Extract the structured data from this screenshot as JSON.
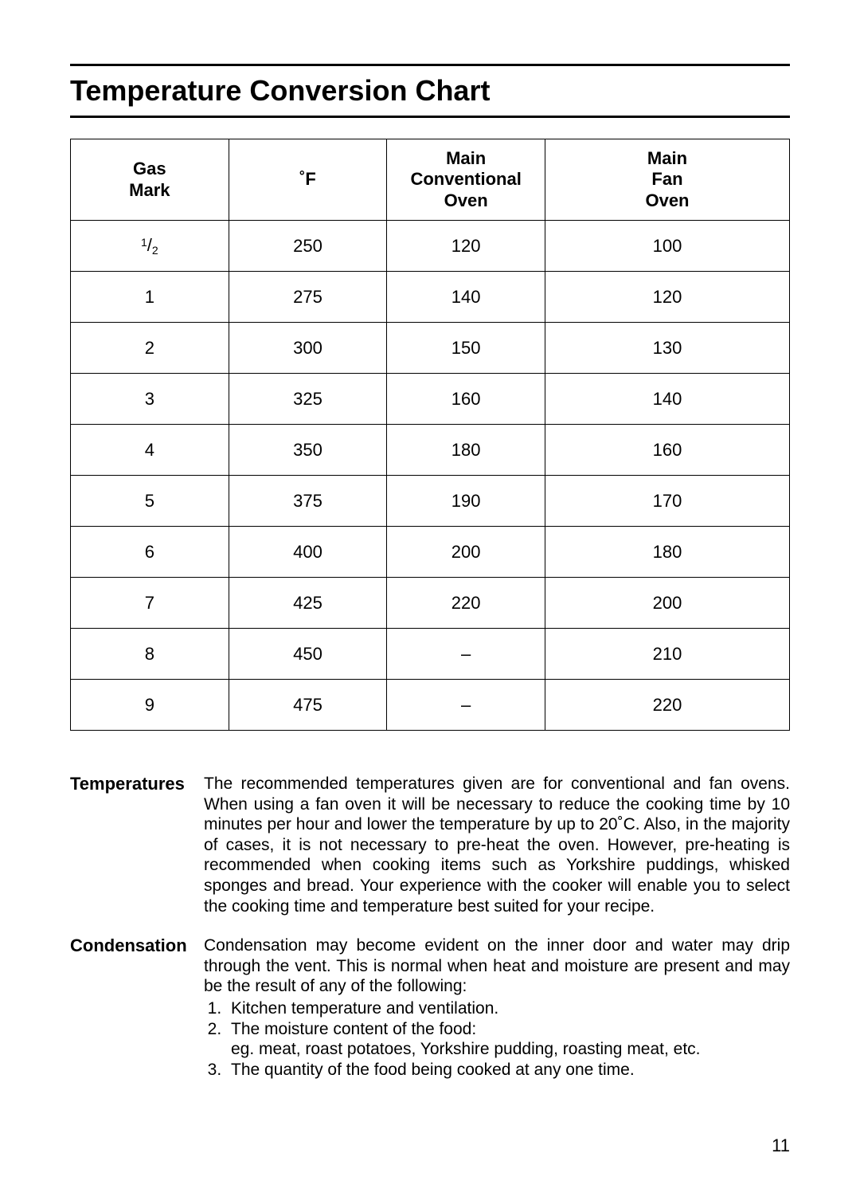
{
  "page": {
    "title": "Temperature Conversion Chart",
    "number": "11"
  },
  "table": {
    "columns": [
      {
        "l1": "Gas",
        "l2": "Mark"
      },
      {
        "l1": "˚F",
        "l2": ""
      },
      {
        "l1": "Main",
        "l2": "Conventional",
        "l3": "Oven"
      },
      {
        "l1": "Main",
        "l2": "Fan",
        "l3": "Oven"
      }
    ],
    "col_widths_pct": [
      22,
      22,
      22,
      34
    ],
    "rows": [
      {
        "gas_html": "frac_half",
        "f": "250",
        "conv": "120",
        "fan": "100"
      },
      {
        "gas_html": "1",
        "f": "275",
        "conv": "140",
        "fan": "120"
      },
      {
        "gas_html": "2",
        "f": "300",
        "conv": "150",
        "fan": "130"
      },
      {
        "gas_html": "3",
        "f": "325",
        "conv": "160",
        "fan": "140"
      },
      {
        "gas_html": "4",
        "f": "350",
        "conv": "180",
        "fan": "160"
      },
      {
        "gas_html": "5",
        "f": "375",
        "conv": "190",
        "fan": "170"
      },
      {
        "gas_html": "6",
        "f": "400",
        "conv": "200",
        "fan": "180"
      },
      {
        "gas_html": "7",
        "f": "425",
        "conv": "220",
        "fan": "200"
      },
      {
        "gas_html": "8",
        "f": "450",
        "conv": "–",
        "fan": "210"
      },
      {
        "gas_html": "9",
        "f": "475",
        "conv": "–",
        "fan": "220"
      }
    ]
  },
  "notes": {
    "temperatures": {
      "label": "Temperatures",
      "text": "The recommended temperatures given are for conventional and fan ovens. When using a fan oven it will be necessary to reduce the cooking time by 10 minutes per hour and lower the temperature by up to 20˚C. Also, in the majority of cases, it is not necessary to pre-heat the oven. However, pre-heating is recommended when cooking items such as Yorkshire puddings, whisked sponges and bread. Your experience with the cooker will enable you to select the cooking time and temperature best suited for your recipe."
    },
    "condensation": {
      "label": "Condensation",
      "intro": "Condensation may become evident on the inner door and water may drip through the vent. This is normal when heat and moisture are present and may be the result of any of the following:",
      "items": [
        "Kitchen temperature and ventilation.",
        "The moisture content of the food:\neg. meat, roast potatoes, Yorkshire pudding, roasting meat, etc.",
        "The quantity of the food being cooked at any one time."
      ]
    }
  }
}
